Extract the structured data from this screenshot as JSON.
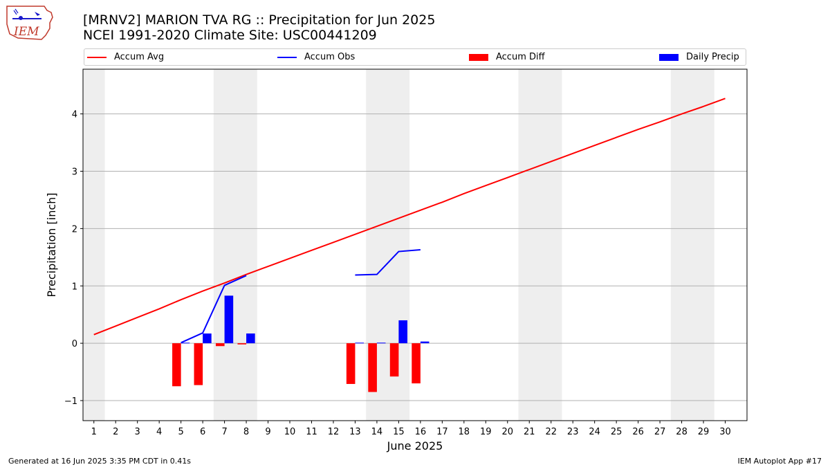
{
  "header": {
    "title_line1": "[MRNV2] MARION TVA RG :: Precipitation for Jun 2025",
    "title_line2": "NCEI 1991-2020 Climate Site: USC00441209"
  },
  "logo": {
    "text": "IEM"
  },
  "footer": {
    "generated": "Generated at 16 Jun 2025 3:35 PM CDT in 0.41s",
    "app": "IEM Autoplot App #17"
  },
  "chart_data": {
    "type": "bar",
    "xlabel": "June 2025",
    "ylabel": "Precipitation [inch]",
    "xlim": [
      0.5,
      31.0
    ],
    "ylim": [
      -1.35,
      4.78
    ],
    "x_ticks": [
      1,
      2,
      3,
      4,
      5,
      6,
      7,
      8,
      9,
      10,
      11,
      12,
      13,
      14,
      15,
      16,
      17,
      18,
      19,
      20,
      21,
      22,
      23,
      24,
      25,
      26,
      27,
      28,
      29,
      30
    ],
    "y_ticks": [
      -1,
      0,
      1,
      2,
      3,
      4
    ],
    "y_tick_labels": [
      "−1",
      "0",
      "1",
      "2",
      "3",
      "4"
    ],
    "grid": "horizontal",
    "weekend_bands": [
      [
        0.5,
        1.5
      ],
      [
        6.5,
        8.5
      ],
      [
        13.5,
        15.5
      ],
      [
        20.5,
        22.5
      ],
      [
        27.5,
        29.5
      ]
    ],
    "legend_position": "top",
    "series": [
      {
        "name": "Accum Avg",
        "kind": "line",
        "color": "#ff0000",
        "x": [
          1,
          2,
          3,
          4,
          5,
          6,
          7,
          8,
          9,
          10,
          11,
          12,
          13,
          14,
          15,
          16,
          17,
          18,
          19,
          20,
          21,
          22,
          23,
          24,
          25,
          26,
          27,
          28,
          29,
          30
        ],
        "values": [
          0.15,
          0.3,
          0.45,
          0.6,
          0.76,
          0.91,
          1.05,
          1.2,
          1.34,
          1.48,
          1.62,
          1.76,
          1.9,
          2.04,
          2.18,
          2.32,
          2.46,
          2.61,
          2.75,
          2.89,
          3.03,
          3.17,
          3.31,
          3.45,
          3.59,
          3.73,
          3.86,
          4.0,
          4.13,
          4.27
        ]
      },
      {
        "name": "Accum Obs",
        "kind": "line",
        "color": "#0000ff",
        "segments": [
          {
            "x": [
              5,
              6,
              7,
              8
            ],
            "values": [
              0.01,
              0.18,
              1.01,
              1.18
            ]
          },
          {
            "x": [
              13,
              14,
              15,
              16
            ],
            "values": [
              1.19,
              1.2,
              1.6,
              1.63
            ]
          }
        ]
      },
      {
        "name": "Accum Diff",
        "kind": "bar",
        "color": "#ff0000",
        "x": [
          5,
          6,
          7,
          8,
          13,
          14,
          15,
          16
        ],
        "values": [
          -0.75,
          -0.73,
          -0.05,
          -0.02,
          -0.71,
          -0.85,
          -0.58,
          -0.7
        ]
      },
      {
        "name": "Daily Precip",
        "kind": "bar",
        "color": "#0000ff",
        "x": [
          5,
          6,
          7,
          8,
          13,
          14,
          15,
          16
        ],
        "values": [
          0.01,
          0.17,
          0.83,
          0.17,
          0.01,
          0.01,
          0.4,
          0.03
        ]
      }
    ]
  }
}
